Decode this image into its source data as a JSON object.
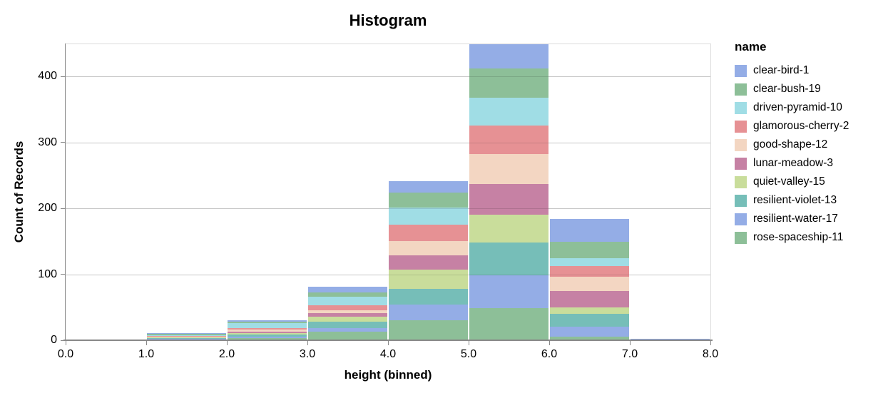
{
  "chart_data": {
    "type": "bar",
    "variant": "stacked-histogram",
    "title": "Histogram",
    "xlabel": "height (binned)",
    "ylabel": "Count of Records",
    "legend_title": "name",
    "legend_position": "right",
    "grid": true,
    "bin_edges": [
      0,
      1,
      2,
      3,
      4,
      5,
      6,
      7,
      8
    ],
    "x_tick_labels": [
      "0.0",
      "1.0",
      "2.0",
      "3.0",
      "4.0",
      "5.0",
      "6.0",
      "7.0",
      "8.0"
    ],
    "yticks": [
      0,
      100,
      200,
      300,
      400
    ],
    "ytick_labels": [
      "0",
      "100",
      "200",
      "300",
      "400"
    ],
    "ylim": [
      0,
      450
    ],
    "stack_note": "first series renders at top of stack; stacking is bottom-up in reverse series order",
    "series": [
      {
        "name": "clear-bird-1",
        "color": "#94ade6",
        "values": [
          0,
          1,
          2,
          8,
          17,
          37,
          35,
          1
        ]
      },
      {
        "name": "clear-bush-19",
        "color": "#8dbf98",
        "values": [
          0,
          2,
          2,
          7,
          23,
          44,
          25,
          0
        ]
      },
      {
        "name": "driven-pyramid-10",
        "color": "#a0dde5",
        "values": [
          0,
          1,
          7,
          13,
          26,
          42,
          11,
          0
        ]
      },
      {
        "name": "glamorous-cherry-2",
        "color": "#e69194",
        "values": [
          0,
          1,
          3,
          7,
          24,
          44,
          17,
          0
        ]
      },
      {
        "name": "good-shape-12",
        "color": "#f3d6c2",
        "values": [
          0,
          1,
          3,
          5,
          22,
          45,
          21,
          0
        ]
      },
      {
        "name": "lunar-meadow-3",
        "color": "#c681a4",
        "values": [
          0,
          1,
          2,
          5,
          22,
          46,
          25,
          2
        ]
      },
      {
        "name": "quiet-valley-15",
        "color": "#c9dd9b",
        "values": [
          1,
          1,
          2,
          8,
          29,
          43,
          10,
          0
        ]
      },
      {
        "name": "resilient-violet-13",
        "color": "#76beb8",
        "values": [
          0,
          1,
          3,
          9,
          24,
          49,
          19,
          0
        ]
      },
      {
        "name": "resilient-water-17",
        "color": "#94ade6",
        "values": [
          0,
          1,
          3,
          6,
          24,
          50,
          16,
          0
        ]
      },
      {
        "name": "rose-spaceship-11",
        "color": "#8dbf98",
        "values": [
          0,
          2,
          4,
          14,
          31,
          50,
          6,
          0
        ]
      }
    ],
    "bin_totals": [
      1,
      12,
      31,
      82,
      242,
      450,
      185,
      3
    ]
  },
  "colors": {
    "axis_line": "#888888",
    "grid_line": "#dddddd",
    "plot_border": "#dddddd",
    "text": "#000000"
  }
}
